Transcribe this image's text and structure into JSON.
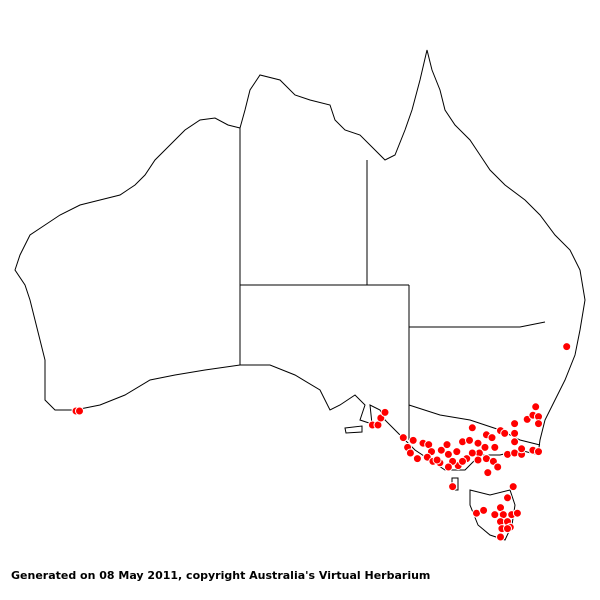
{
  "caption": "Generated on 08 May 2011, copyright Australia's Virtual Herbarium",
  "map": {
    "region": "Australia",
    "projection": "equirectangular",
    "colors": {
      "background": "#ffffff",
      "outline": "#000000",
      "point_fill": "#ff0000",
      "point_stroke": "#ffffff"
    },
    "points_lonlat": [
      [
        117.35,
        -35.0
      ],
      [
        117.6,
        -35.0
      ],
      [
        138.4,
        -36.0
      ],
      [
        138.8,
        -36.0
      ],
      [
        139.0,
        -35.5
      ],
      [
        139.3,
        -35.1
      ],
      [
        152.2,
        -30.4
      ],
      [
        140.6,
        -36.9
      ],
      [
        141.3,
        -37.1
      ],
      [
        140.9,
        -37.6
      ],
      [
        141.1,
        -38.0
      ],
      [
        141.6,
        -38.4
      ],
      [
        142.0,
        -37.3
      ],
      [
        142.4,
        -37.4
      ],
      [
        142.6,
        -37.9
      ],
      [
        142.3,
        -38.3
      ],
      [
        142.7,
        -38.6
      ],
      [
        143.2,
        -38.7
      ],
      [
        143.3,
        -37.8
      ],
      [
        143.7,
        -37.4
      ],
      [
        143.8,
        -38.1
      ],
      [
        144.4,
        -37.9
      ],
      [
        144.5,
        -38.9
      ],
      [
        144.1,
        -38.6
      ],
      [
        144.8,
        -37.2
      ],
      [
        145.3,
        -37.1
      ],
      [
        145.5,
        -36.2
      ],
      [
        145.9,
        -37.3
      ],
      [
        146.5,
        -36.7
      ],
      [
        146.9,
        -36.9
      ],
      [
        146.4,
        -37.6
      ],
      [
        146.0,
        -38.0
      ],
      [
        145.5,
        -38.0
      ],
      [
        145.9,
        -38.5
      ],
      [
        146.5,
        -38.4
      ],
      [
        147.0,
        -38.6
      ],
      [
        146.6,
        -39.4
      ],
      [
        147.3,
        -39.0
      ],
      [
        147.1,
        -37.6
      ],
      [
        147.5,
        -36.4
      ],
      [
        147.8,
        -36.6
      ],
      [
        148.5,
        -35.9
      ],
      [
        148.5,
        -36.6
      ],
      [
        148.5,
        -37.2
      ],
      [
        148.0,
        -38.1
      ],
      [
        148.5,
        -38.0
      ],
      [
        149.0,
        -38.1
      ],
      [
        149.0,
        -37.7
      ],
      [
        149.4,
        -35.6
      ],
      [
        149.8,
        -35.3
      ],
      [
        150.0,
        -34.7
      ],
      [
        150.2,
        -35.4
      ],
      [
        150.2,
        -35.9
      ],
      [
        149.8,
        -37.8
      ],
      [
        150.2,
        -37.9
      ],
      [
        145.1,
        -38.4
      ],
      [
        144.8,
        -38.6
      ],
      [
        143.8,
        -39.0
      ],
      [
        143.0,
        -38.5
      ],
      [
        144.1,
        -40.4
      ],
      [
        148.4,
        -40.4
      ],
      [
        148.0,
        -41.2
      ],
      [
        145.8,
        -42.3
      ],
      [
        146.3,
        -42.1
      ],
      [
        147.5,
        -41.9
      ],
      [
        147.1,
        -42.4
      ],
      [
        147.7,
        -42.4
      ],
      [
        148.3,
        -42.4
      ],
      [
        148.7,
        -42.3
      ],
      [
        147.5,
        -42.9
      ],
      [
        148.0,
        -42.9
      ],
      [
        148.2,
        -43.3
      ],
      [
        147.6,
        -43.4
      ],
      [
        147.5,
        -44.0
      ],
      [
        148.0,
        -43.4
      ]
    ]
  }
}
